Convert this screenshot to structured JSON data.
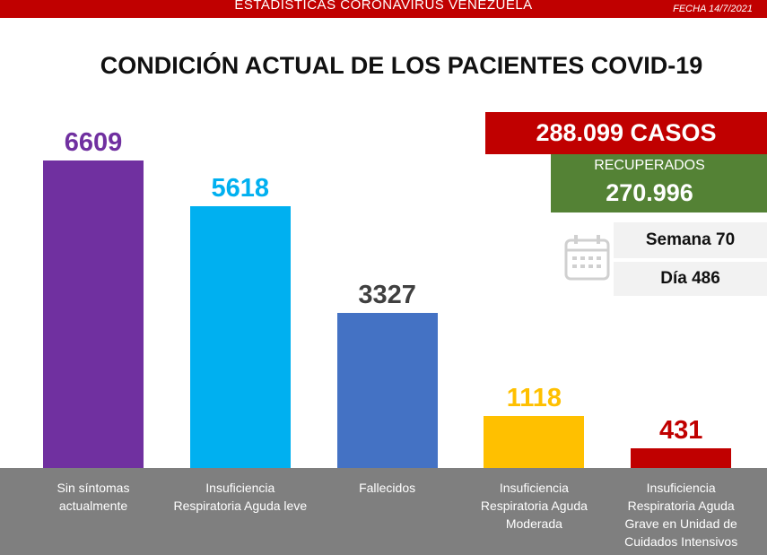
{
  "header": {
    "title": "ESTADÍSTICAS CORONAVIRUS VENEZUELA",
    "date": "FECHA 14/7/2021"
  },
  "chart_data": {
    "type": "bar",
    "title": "CONDICIÓN ACTUAL DE LOS PACIENTES COVID-19",
    "categories": [
      "Sin síntomas actualmente",
      "Insuficiencia Respiratoria Aguda leve",
      "Fallecidos",
      "Insuficiencia Respiratoria Aguda Moderada",
      "Insuficiencia Respiratoria Aguda Grave en Unidad de Cuidados Intensivos"
    ],
    "values": [
      6609,
      5618,
      3327,
      1118,
      431
    ],
    "colors": [
      "#7030a0",
      "#00b0f0",
      "#4472c4",
      "#ffc000",
      "#c00000"
    ],
    "label_colors": [
      "#7030a0",
      "#00b0f0",
      "#404040",
      "#ffc000",
      "#c00000"
    ]
  },
  "summary": {
    "cases": "288.099 CASOS",
    "recovered_label": "RECUPERADOS",
    "recovered_value": "270.996",
    "week": "Semana 70",
    "day": "Día 486"
  }
}
